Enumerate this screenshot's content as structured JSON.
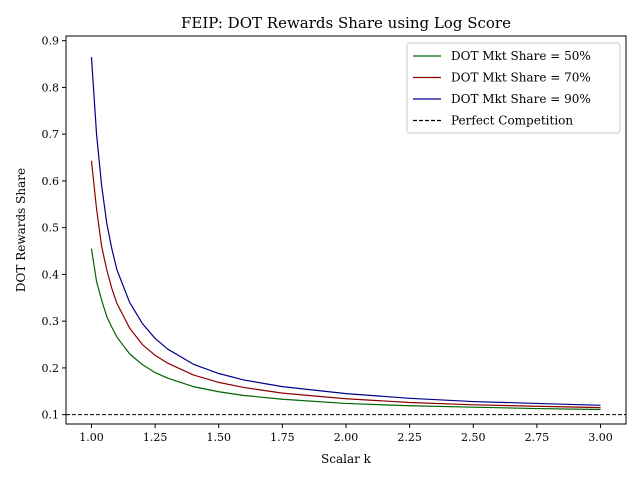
{
  "chart_data": {
    "type": "line",
    "title": "FEIP: DOT Rewards Share using Log Score",
    "xlabel": "Scalar k",
    "ylabel": "DOT Rewards Share",
    "xlim": [
      0.9,
      3.1
    ],
    "ylim": [
      0.08,
      0.91
    ],
    "xticks": [
      1.0,
      1.25,
      1.5,
      1.75,
      2.0,
      2.25,
      2.5,
      2.75,
      3.0
    ],
    "xtick_labels": [
      "1.00",
      "1.25",
      "1.50",
      "1.75",
      "2.00",
      "2.25",
      "2.50",
      "2.75",
      "3.00"
    ],
    "yticks": [
      0.1,
      0.2,
      0.3,
      0.4,
      0.5,
      0.6,
      0.7,
      0.8,
      0.9
    ],
    "ytick_labels": [
      "0.1",
      "0.2",
      "0.3",
      "0.4",
      "0.5",
      "0.6",
      "0.7",
      "0.8",
      "0.9"
    ],
    "grid": false,
    "legend_position": "top-right",
    "x": [
      1.0,
      1.02,
      1.04,
      1.06,
      1.08,
      1.1,
      1.15,
      1.2,
      1.25,
      1.3,
      1.4,
      1.5,
      1.6,
      1.75,
      2.0,
      2.25,
      2.5,
      2.75,
      3.0
    ],
    "series": [
      {
        "name": "DOT Mkt Share = 50%",
        "color": "#006400",
        "style": "solid",
        "values": [
          0.455,
          0.385,
          0.345,
          0.31,
          0.287,
          0.266,
          0.23,
          0.207,
          0.19,
          0.178,
          0.16,
          0.149,
          0.141,
          0.133,
          0.124,
          0.119,
          0.116,
          0.113,
          0.111
        ]
      },
      {
        "name": "DOT Mkt Share = 70%",
        "color": "#8b0000",
        "style": "solid",
        "values": [
          0.643,
          0.54,
          0.46,
          0.41,
          0.37,
          0.338,
          0.285,
          0.25,
          0.227,
          0.21,
          0.185,
          0.169,
          0.158,
          0.146,
          0.134,
          0.126,
          0.121,
          0.118,
          0.115
        ]
      },
      {
        "name": "DOT Mkt Share = 90%",
        "color": "#00008b",
        "style": "solid",
        "values": [
          0.865,
          0.7,
          0.59,
          0.51,
          0.455,
          0.41,
          0.34,
          0.295,
          0.263,
          0.24,
          0.208,
          0.188,
          0.174,
          0.16,
          0.145,
          0.135,
          0.128,
          0.124,
          0.12
        ]
      },
      {
        "name": "Perfect Competition",
        "color": "#000000",
        "style": "dashed",
        "hline": 0.1
      }
    ]
  }
}
